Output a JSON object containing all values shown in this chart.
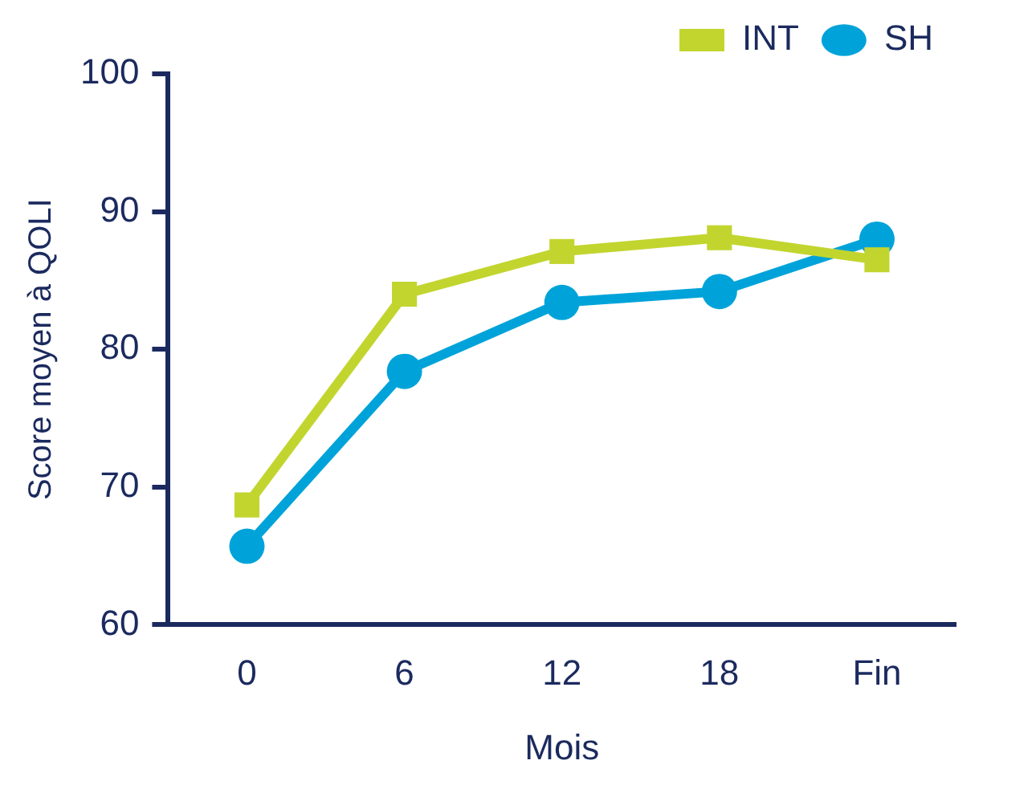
{
  "chart_data": {
    "type": "line",
    "xlabel": "Mois",
    "ylabel": "Score moyen à QOLI",
    "categories": [
      "0",
      "6",
      "12",
      "18",
      "Fin"
    ],
    "series": [
      {
        "name": "INT",
        "color": "#c2d52f",
        "marker": "square",
        "values": [
          68.7,
          84.0,
          87.1,
          88.1,
          86.5
        ]
      },
      {
        "name": "SH",
        "color": "#00a3d9",
        "marker": "circle",
        "values": [
          65.7,
          78.4,
          83.4,
          84.2,
          88.0
        ]
      }
    ],
    "ylim": [
      60,
      100
    ],
    "yticks": [
      60,
      70,
      80,
      90,
      100
    ],
    "grid": false,
    "legend": "top right",
    "line_style": "solid"
  }
}
